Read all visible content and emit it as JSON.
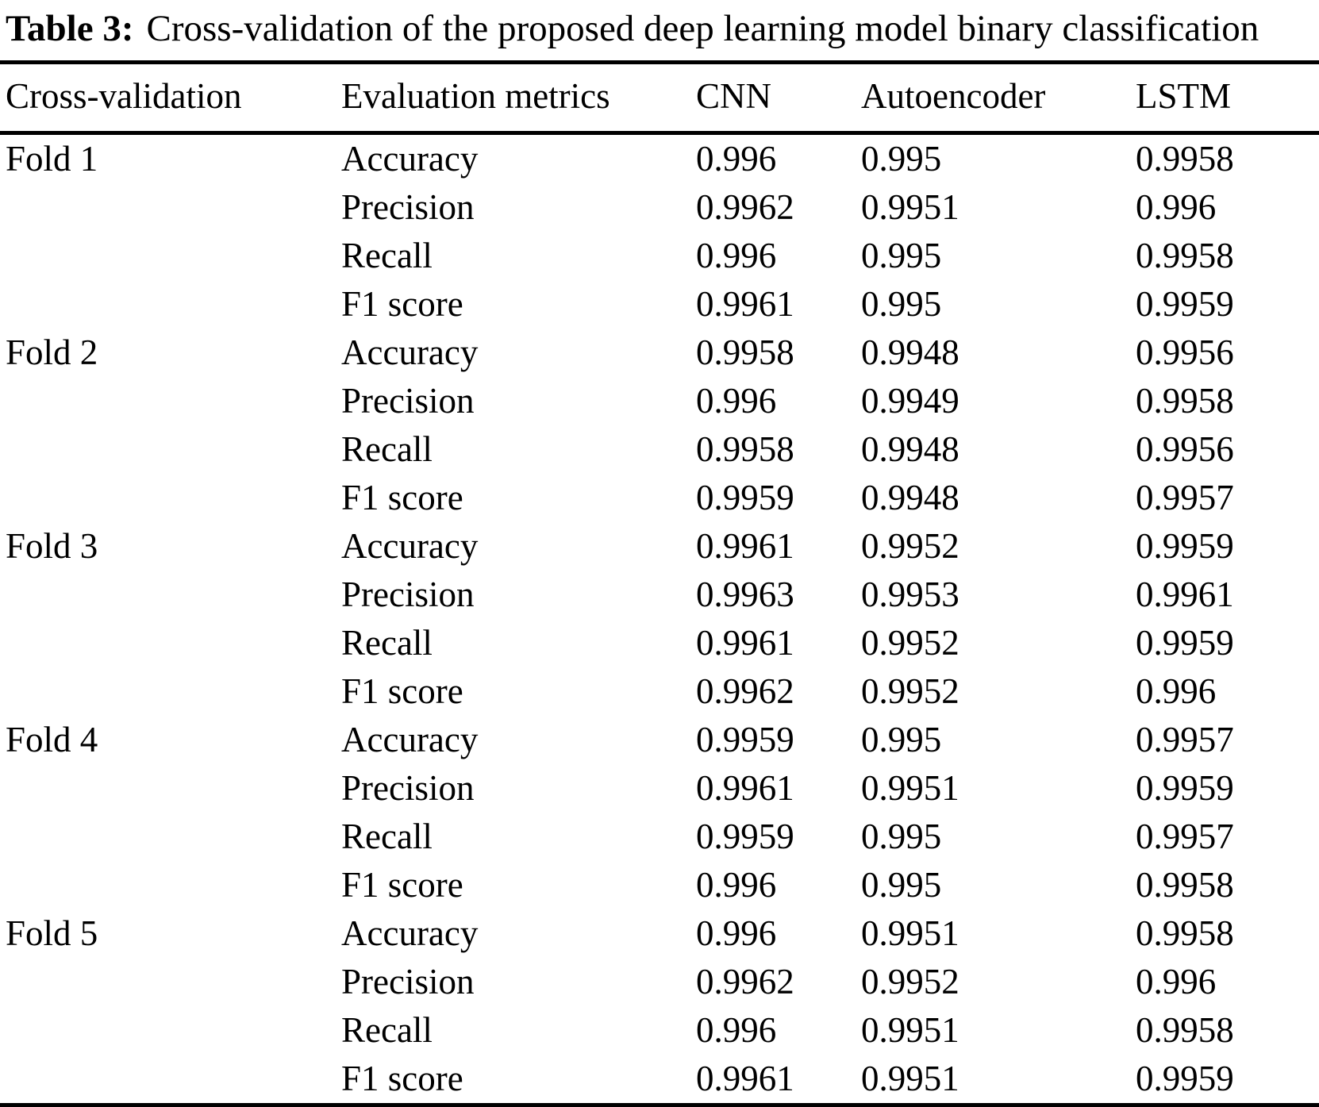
{
  "caption": {
    "label": "Table 3:",
    "text": "Cross-validation of the proposed deep learning model binary classification"
  },
  "table": {
    "columns": [
      "Cross-validation",
      "Evaluation metrics",
      "CNN",
      "Autoencoder",
      "LSTM"
    ],
    "folds": [
      {
        "name": "Fold 1",
        "rows": [
          {
            "metric": "Accuracy",
            "values": [
              "0.996",
              "0.995",
              "0.9958"
            ]
          },
          {
            "metric": "Precision",
            "values": [
              "0.9962",
              "0.9951",
              "0.996"
            ]
          },
          {
            "metric": "Recall",
            "values": [
              "0.996",
              "0.995",
              "0.9958"
            ]
          },
          {
            "metric": "F1 score",
            "values": [
              "0.9961",
              "0.995",
              "0.9959"
            ]
          }
        ]
      },
      {
        "name": "Fold 2",
        "rows": [
          {
            "metric": "Accuracy",
            "values": [
              "0.9958",
              "0.9948",
              "0.9956"
            ]
          },
          {
            "metric": "Precision",
            "values": [
              "0.996",
              "0.9949",
              "0.9958"
            ]
          },
          {
            "metric": "Recall",
            "values": [
              "0.9958",
              "0.9948",
              "0.9956"
            ]
          },
          {
            "metric": "F1 score",
            "values": [
              "0.9959",
              "0.9948",
              "0.9957"
            ]
          }
        ]
      },
      {
        "name": "Fold 3",
        "rows": [
          {
            "metric": "Accuracy",
            "values": [
              "0.9961",
              "0.9952",
              "0.9959"
            ]
          },
          {
            "metric": "Precision",
            "values": [
              "0.9963",
              "0.9953",
              "0.9961"
            ]
          },
          {
            "metric": "Recall",
            "values": [
              "0.9961",
              "0.9952",
              "0.9959"
            ]
          },
          {
            "metric": "F1 score",
            "values": [
              "0.9962",
              "0.9952",
              "0.996"
            ]
          }
        ]
      },
      {
        "name": "Fold 4",
        "rows": [
          {
            "metric": "Accuracy",
            "values": [
              "0.9959",
              "0.995",
              "0.9957"
            ]
          },
          {
            "metric": "Precision",
            "values": [
              "0.9961",
              "0.9951",
              "0.9959"
            ]
          },
          {
            "metric": "Recall",
            "values": [
              "0.9959",
              "0.995",
              "0.9957"
            ]
          },
          {
            "metric": "F1 score",
            "values": [
              "0.996",
              "0.995",
              "0.9958"
            ]
          }
        ]
      },
      {
        "name": "Fold 5",
        "rows": [
          {
            "metric": "Accuracy",
            "values": [
              "0.996",
              "0.9951",
              "0.9958"
            ]
          },
          {
            "metric": "Precision",
            "values": [
              "0.9962",
              "0.9952",
              "0.996"
            ]
          },
          {
            "metric": "Recall",
            "values": [
              "0.996",
              "0.9951",
              "0.9958"
            ]
          },
          {
            "metric": "F1 score",
            "values": [
              "0.9961",
              "0.9951",
              "0.9959"
            ]
          }
        ]
      }
    ]
  }
}
